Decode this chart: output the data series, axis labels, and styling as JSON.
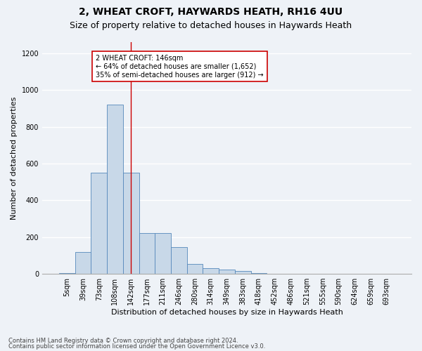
{
  "title1": "2, WHEAT CROFT, HAYWARDS HEATH, RH16 4UU",
  "title2": "Size of property relative to detached houses in Haywards Heath",
  "xlabel": "Distribution of detached houses by size in Haywards Heath",
  "ylabel": "Number of detached properties",
  "categories": [
    "5sqm",
    "39sqm",
    "73sqm",
    "108sqm",
    "142sqm",
    "177sqm",
    "211sqm",
    "246sqm",
    "280sqm",
    "314sqm",
    "349sqm",
    "383sqm",
    "418sqm",
    "452sqm",
    "486sqm",
    "521sqm",
    "555sqm",
    "590sqm",
    "624sqm",
    "659sqm",
    "693sqm"
  ],
  "values": [
    5,
    120,
    550,
    920,
    550,
    220,
    220,
    145,
    55,
    30,
    25,
    15,
    5,
    2,
    1,
    0,
    0,
    0,
    0,
    0,
    0
  ],
  "bar_color": "#c8d8e8",
  "bar_edge_color": "#5588bb",
  "vline_x_index": 4,
  "vline_color": "#cc0000",
  "annotation_text": "2 WHEAT CROFT: 146sqm\n← 64% of detached houses are smaller (1,652)\n35% of semi-detached houses are larger (912) →",
  "annotation_box_color": "white",
  "annotation_box_edge_color": "#cc0000",
  "ylim": [
    0,
    1260
  ],
  "yticks": [
    0,
    200,
    400,
    600,
    800,
    1000,
    1200
  ],
  "footer1": "Contains HM Land Registry data © Crown copyright and database right 2024.",
  "footer2": "Contains public sector information licensed under the Open Government Licence v3.0.",
  "bg_color": "#eef2f7",
  "grid_color": "#ffffff",
  "title1_fontsize": 10,
  "title2_fontsize": 9,
  "xlabel_fontsize": 8,
  "ylabel_fontsize": 8,
  "tick_fontsize": 7,
  "annotation_fontsize": 7,
  "footer_fontsize": 6
}
